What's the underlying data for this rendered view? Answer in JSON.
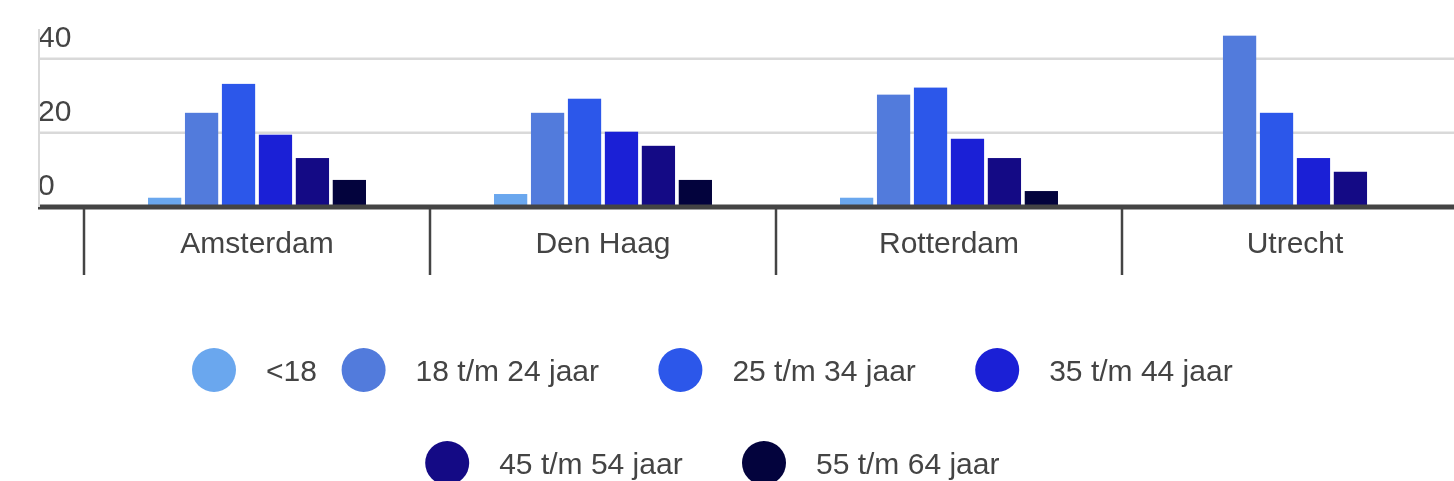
{
  "chart_data": {
    "type": "bar",
    "categories": [
      "Amsterdam",
      "Den Haag",
      "Rotterdam",
      "Utrecht"
    ],
    "series": [
      {
        "name": "<18",
        "color": "#6aa7ee",
        "values": [
          2.5,
          3.5,
          2.5,
          null
        ]
      },
      {
        "name": "18 t/m 24 jaar",
        "color": "#527bdc",
        "values": [
          25.4,
          25.4,
          30.3,
          46.2
        ]
      },
      {
        "name": "25 t/m 34 jaar",
        "color": "#2c57ea",
        "values": [
          33.2,
          29.2,
          32.2,
          25.4
        ]
      },
      {
        "name": "35 t/m 44 jaar",
        "color": "#1b20d6",
        "values": [
          19.5,
          20.3,
          18.4,
          13.2
        ]
      },
      {
        "name": "45 t/m 54 jaar",
        "color": "#140a85",
        "values": [
          13.2,
          16.5,
          13.2,
          9.5
        ]
      },
      {
        "name": "55 t/m 64 jaar",
        "color": "#03033d",
        "values": [
          7.3,
          7.3,
          4.3,
          null
        ]
      }
    ],
    "ylim": [
      0,
      48
    ],
    "yticks": [
      0,
      20,
      40
    ],
    "grid": "y",
    "legend": "bottom"
  }
}
